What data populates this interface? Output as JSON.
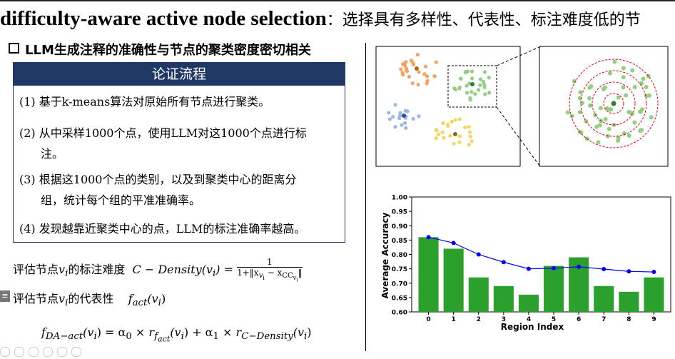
{
  "slide": {
    "title_bold": "difficulty-aware active node selection",
    "title_sep": "：",
    "title_cn": "选择具有多样性、代表性、标注难度低的节",
    "bullet": "LLM生成注释的准确性与节点的聚类密度密切相关",
    "process_box": {
      "header": "论证流程",
      "steps": [
        {
          "num": "(1)",
          "text": "基于k-means算法对原始所有节点进行聚类。",
          "cont": ""
        },
        {
          "num": "(2)",
          "text": "从中采样1000个点，使用LLM对这1000个点进行标",
          "cont": "注。"
        },
        {
          "num": "(3)",
          "text": "根据这1000个点的类别，以及到聚类中心的距离分",
          "cont": "组，统计每个组的平准准确率。"
        },
        {
          "num": "(4)",
          "text": "发现越靠近聚类中心的点，LLM的标注准确率越高。",
          "cont": ""
        }
      ]
    },
    "formula1": {
      "label": "评估节点",
      "label2": "的标注难度",
      "lhs": "C − Density(v",
      "numerator": "1",
      "denominator": "1+‖x",
      "den_tail": " − x",
      "den_end": "‖"
    },
    "formula2": {
      "label": "评估节点",
      "label2": "的代表性",
      "fn": "f",
      "fn_sub": "act",
      "arg": "(v"
    },
    "formula3": {
      "text_a": "f",
      "sub_a": "DA−act",
      "text_b": "(v",
      "text_c": ") = α",
      "sub_c": "0",
      "text_d": " × r",
      "sub_d": "f",
      "sub_d2": "act",
      "text_e": "(v",
      "text_f": ") + α",
      "sub_f": "1",
      "text_g": " × r",
      "sub_g": "C−Density",
      "text_h": "(v",
      "text_i": ")"
    },
    "var_v": "v",
    "var_i": "i"
  },
  "colors": {
    "header_navy": "#1f3864",
    "bar_green": "#2ca02c",
    "line_blue": "#0000ff",
    "orange": "#f4a460",
    "green_pts": "#90d080",
    "blue_pts": "#9bb8e0",
    "yellow_pts": "#f4d560",
    "ring_red": "#e00000"
  },
  "chart_data": {
    "type": "bar",
    "categories": [
      "0",
      "1",
      "2",
      "3",
      "4",
      "5",
      "6",
      "7",
      "8",
      "9"
    ],
    "values": [
      0.86,
      0.82,
      0.72,
      0.69,
      0.66,
      0.76,
      0.79,
      0.69,
      0.67,
      0.72
    ],
    "line_values": [
      0.86,
      0.84,
      0.8,
      0.773,
      0.75,
      0.752,
      0.757,
      0.749,
      0.741,
      0.739
    ],
    "xlabel": "Region Index",
    "ylabel": "Average Accuracy",
    "ylim": [
      0.6,
      1.0
    ],
    "yticks": [
      "0.60",
      "0.65",
      "0.70",
      "0.75",
      "0.80",
      "0.85",
      "0.90",
      "0.95",
      "1.00"
    ],
    "grid": false
  }
}
